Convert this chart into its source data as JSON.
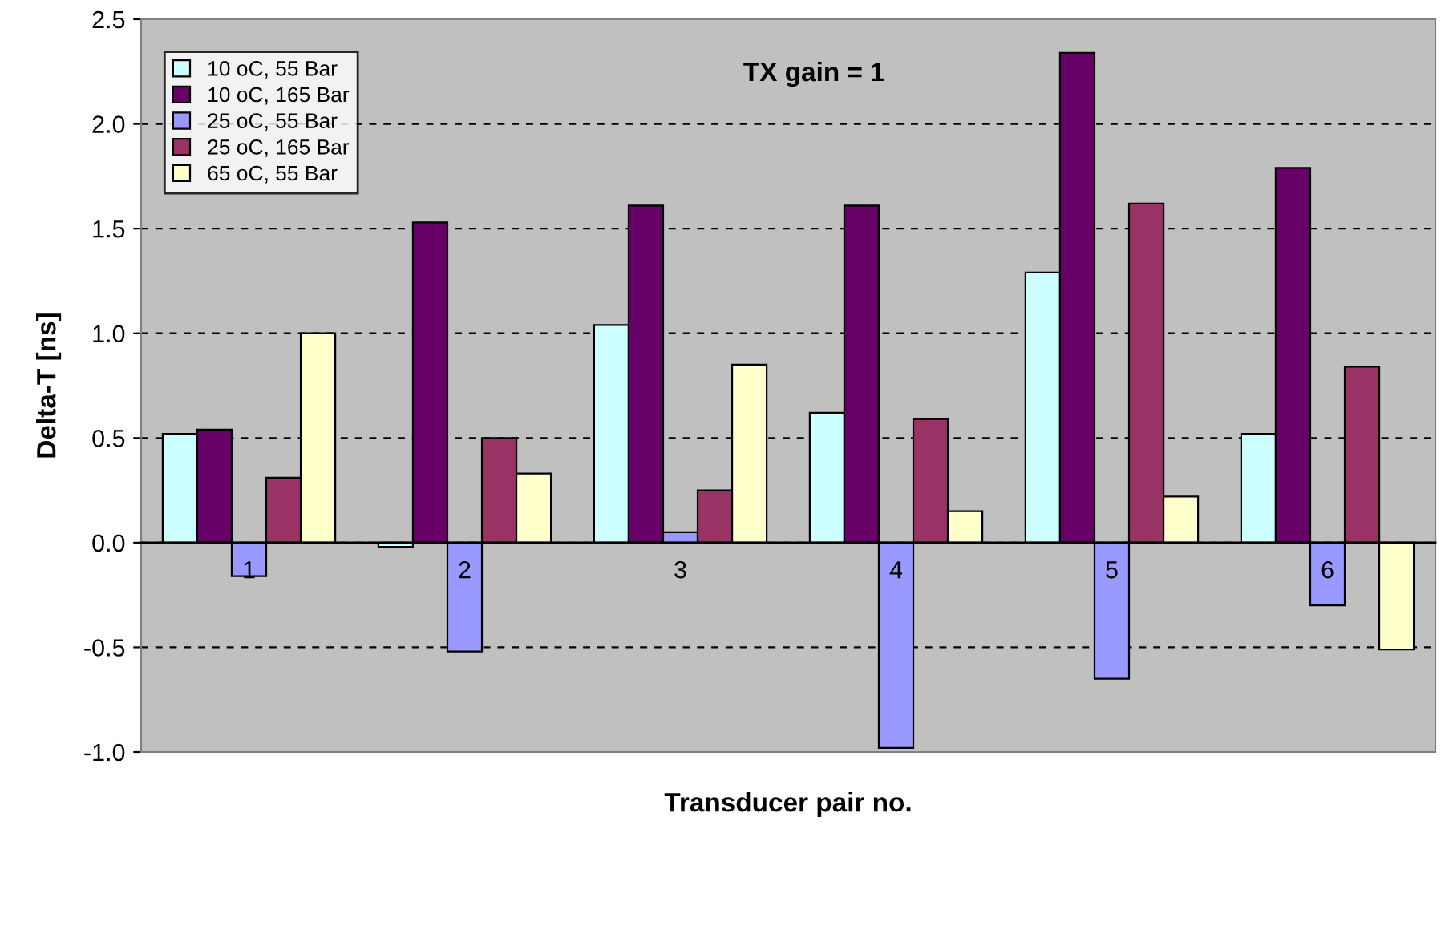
{
  "chart_data": {
    "type": "bar",
    "xlabel": "Transducer pair no.",
    "ylabel": "Delta-T [ns]",
    "annotations": [
      "TX gain = 1"
    ],
    "categories": [
      "1",
      "2",
      "3",
      "4",
      "5",
      "6"
    ],
    "series": [
      {
        "name": "10 oC, 55 Bar",
        "color": "#ccffff",
        "values": [
          0.52,
          -0.02,
          1.04,
          0.62,
          1.29,
          0.52
        ]
      },
      {
        "name": "10 oC, 165 Bar",
        "color": "#660066",
        "values": [
          0.54,
          1.53,
          1.61,
          1.61,
          2.34,
          1.79
        ]
      },
      {
        "name": "25 oC, 55 Bar",
        "color": "#9999ff",
        "values": [
          -0.16,
          -0.52,
          0.05,
          -0.98,
          -0.65,
          -0.3
        ]
      },
      {
        "name": "25 oC, 165 Bar",
        "color": "#993366",
        "values": [
          0.31,
          0.5,
          0.25,
          0.59,
          1.62,
          0.84
        ]
      },
      {
        "name": "65 oC, 55 Bar",
        "color": "#ffffcc",
        "values": [
          1.0,
          0.33,
          0.85,
          0.15,
          0.22,
          -0.51
        ]
      }
    ],
    "ylim": [
      -1.0,
      2.5
    ],
    "yticks": [
      {
        "value": -1.0,
        "label": "-1.0"
      },
      {
        "value": -0.5,
        "label": "-0.5"
      },
      {
        "value": 0.0,
        "label": "0.0"
      },
      {
        "value": 0.5,
        "label": "0.5"
      },
      {
        "value": 1.0,
        "label": "1.0"
      },
      {
        "value": 1.5,
        "label": "1.5"
      },
      {
        "value": 2.0,
        "label": "2.0"
      },
      {
        "value": 2.5,
        "label": "2.5"
      }
    ],
    "grid": "y",
    "legend": "top left"
  }
}
